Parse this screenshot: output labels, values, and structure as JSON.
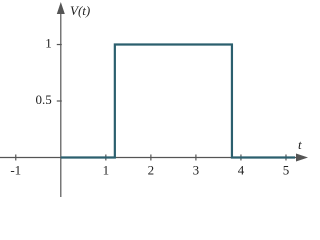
{
  "chart_data": {
    "type": "line",
    "x_label": "t",
    "y_label": "V(t)",
    "x": [
      0,
      1.2,
      1.2,
      3.8,
      3.8,
      5.2
    ],
    "series": [
      {
        "color": "#2b5f6e",
        "values": [
          0,
          0,
          1,
          1,
          0,
          0
        ]
      }
    ],
    "xlim": [
      -1.35,
      5.4
    ],
    "ylim": [
      -0.35,
      1.35
    ],
    "xticks": [
      -1,
      1,
      2,
      3,
      4,
      5
    ],
    "yticks": [
      0.5,
      1
    ]
  }
}
